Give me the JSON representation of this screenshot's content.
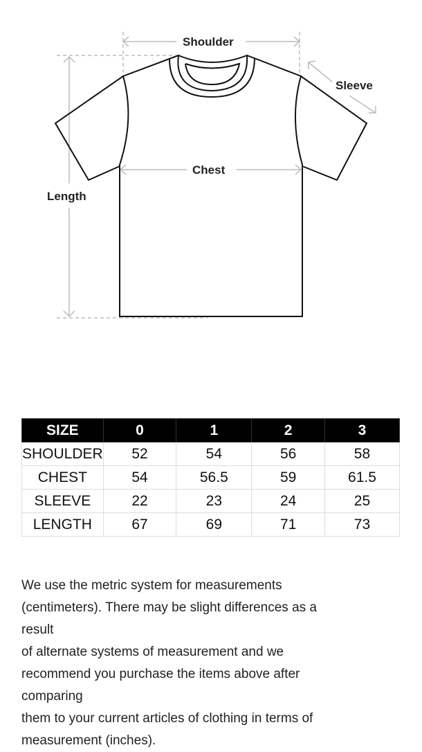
{
  "diagram": {
    "labels": {
      "shoulder": "Shoulder",
      "chest": "Chest",
      "sleeve": "Sleeve",
      "length": "Length"
    }
  },
  "table": {
    "headers": [
      "SIZE",
      "0",
      "1",
      "2",
      "3"
    ],
    "rows": [
      [
        "SHOULDER",
        "52",
        "54",
        "56",
        "58"
      ],
      [
        "CHEST",
        "54",
        "56.5",
        "59",
        "61.5"
      ],
      [
        "SLEEVE",
        "22",
        "23",
        "24",
        "25"
      ],
      [
        "LENGTH",
        "67",
        "69",
        "71",
        "73"
      ]
    ]
  },
  "notes": {
    "lines": [
      "We use the metric system for measurements",
      "(centimeters). There may be slight differences as a",
      "result",
      "of alternate systems of measurement and we",
      "recommend you purchase the items above after",
      "comparing",
      "them to your current articles of clothing in terms of",
      "measurement (inches)."
    ]
  }
}
